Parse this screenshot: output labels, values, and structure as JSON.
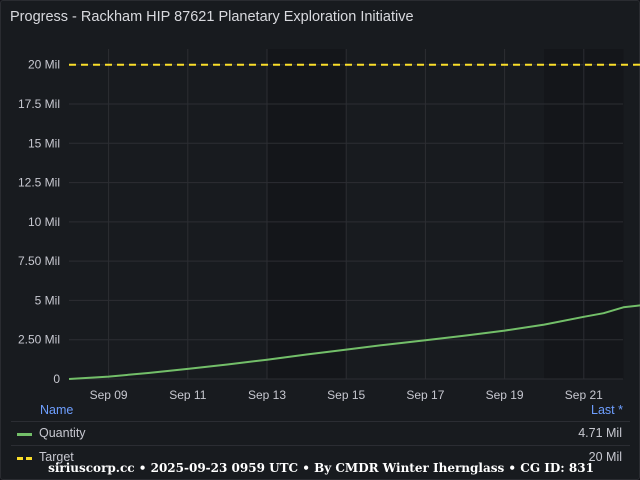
{
  "panel": {
    "title": "Progress - Rackham HIP 87621 Planetary Exploration Initiative"
  },
  "colors": {
    "quantity": "#73bf69",
    "target": "#fade2a",
    "background": "#181b1f",
    "legend_header": "#6e9fff"
  },
  "chart_data": {
    "type": "line",
    "x_tick_labels": [
      "Sep 09",
      "Sep 11",
      "Sep 13",
      "Sep 15",
      "Sep 17",
      "Sep 19",
      "Sep 21"
    ],
    "y_tick_labels": [
      "0",
      "2.50 Mil",
      "5 Mil",
      "7.50 Mil",
      "10 Mil",
      "12.5 Mil",
      "15 Mil",
      "17.5 Mil",
      "20 Mil"
    ],
    "ylim": [
      0,
      21000000
    ],
    "grid": true,
    "legend_placement": "bottom",
    "series": [
      {
        "name": "Quantity",
        "style": "solid",
        "x": [
          "2025-09-08",
          "2025-09-09",
          "2025-09-10",
          "2025-09-11",
          "2025-09-12",
          "2025-09-13",
          "2025-09-14",
          "2025-09-15",
          "2025-09-16",
          "2025-09-17",
          "2025-09-18",
          "2025-09-19",
          "2025-09-20",
          "2025-09-21",
          "2025-09-21T12:00",
          "2025-09-22",
          "2025-09-22T12:00"
        ],
        "values": [
          0,
          150000,
          380000,
          640000,
          920000,
          1230000,
          1560000,
          1870000,
          2180000,
          2470000,
          2760000,
          3080000,
          3460000,
          3960000,
          4190000,
          4560000,
          4710000
        ]
      },
      {
        "name": "Target",
        "style": "dashed",
        "x": [
          "2025-09-08",
          "2025-09-22T12:00"
        ],
        "values": [
          20000000,
          20000000
        ]
      }
    ]
  },
  "legend": {
    "name_header": "Name",
    "last_header": "Last *",
    "rows": [
      {
        "name": "Quantity",
        "last": "4.71 Mil"
      },
      {
        "name": "Target",
        "last": "20 Mil"
      }
    ]
  },
  "footer": {
    "text": "siriuscorp.cc • 2025-09-23 0959 UTC • By CMDR Winter Ihernglаss • CG ID: 831"
  }
}
